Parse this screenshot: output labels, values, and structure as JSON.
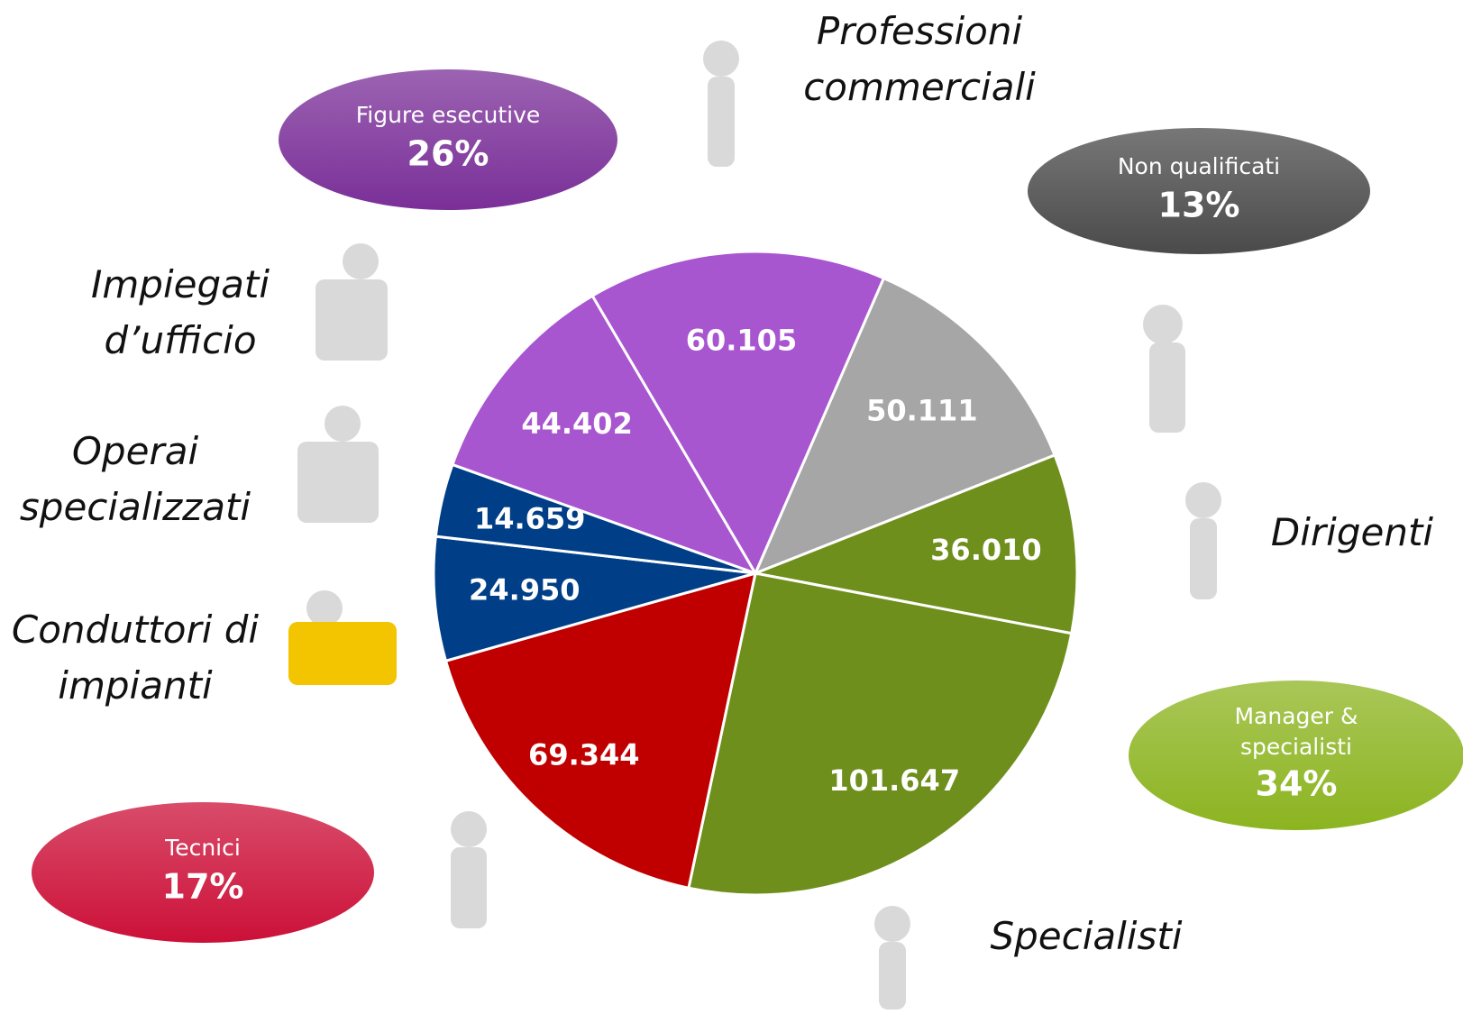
{
  "chart_data": {
    "type": "pie",
    "categories": [
      null,
      "Dirigenti",
      "Specialisti",
      null,
      "Conduttori di impianti",
      "Operai specializzati",
      "Impiegati d’ufficio",
      "Professioni commerciali"
    ],
    "values": [
      50111,
      36010,
      101647,
      69344,
      24950,
      14659,
      44402,
      60105
    ],
    "value_labels": [
      "50.111",
      "36.010",
      "101.647",
      "69.344",
      "24.950",
      "14.659",
      "44.402",
      "60.105"
    ],
    "colors": [
      "#a6a6a6",
      "#6e8f1c",
      "#6e8f1c",
      "#c00000",
      "#003f87",
      "#003f87",
      "#a855d0",
      "#a855d0"
    ],
    "groups": {
      "names": [
        "Figure esecutive",
        "Non qualificati",
        "Manager & specialisti",
        "Tecnici"
      ],
      "values": [
        26,
        13,
        34,
        17
      ],
      "value_labels": [
        "26%",
        "13%",
        "34%",
        "17%"
      ],
      "colors": [
        "#7a2f98",
        "#4a4a4a",
        "#8cb420",
        "#cc1038"
      ]
    }
  }
}
